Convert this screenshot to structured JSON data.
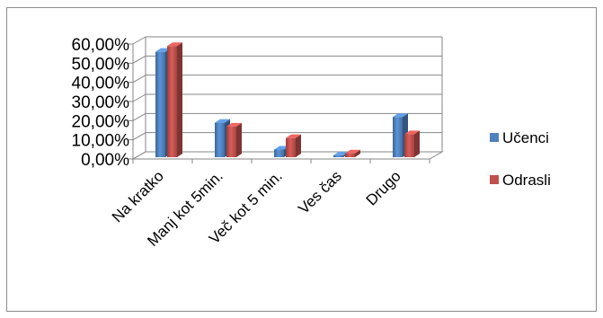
{
  "chart_data": {
    "type": "bar",
    "style": "3d-clustered-column",
    "categories": [
      "Na kratko",
      "Manj kot 5min.",
      "Več kot 5 min.",
      "Ves čas",
      "Drugo"
    ],
    "series": [
      {
        "name": "Učenci",
        "values": [
          0.55,
          0.18,
          0.04,
          0.01,
          0.21
        ],
        "color": "#4f81bd"
      },
      {
        "name": "Odrasli",
        "values": [
          0.58,
          0.16,
          0.1,
          0.02,
          0.12
        ],
        "color": "#c0504d"
      }
    ],
    "y_ticks": [
      "0,00%",
      "10,00%",
      "20,00%",
      "30,00%",
      "40,00%",
      "50,00%",
      "60,00%"
    ],
    "ylim": [
      0,
      0.6
    ],
    "grid": true,
    "legend_position": "right",
    "title": "",
    "xlabel": "",
    "ylabel": ""
  }
}
